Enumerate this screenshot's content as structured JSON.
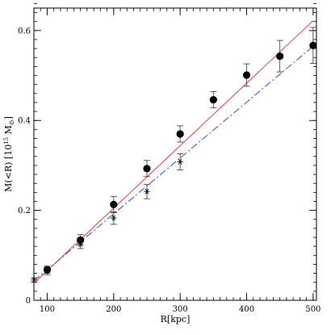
{
  "chart_data": {
    "type": "scatter",
    "xlabel": "R[kpc]",
    "ylabel_main": "M(<R) [10",
    "ylabel_exp": "15",
    "ylabel_unit": " M",
    "ylabel_sub": "⊙",
    "ylabel_close": "]",
    "xlim": [
      80,
      505
    ],
    "ylim": [
      0,
      0.65
    ],
    "x_ticks": [
      100,
      200,
      300,
      400,
      500
    ],
    "y_ticks": [
      0,
      0.2,
      0.4,
      0.6
    ],
    "x_tick_labels": [
      "100",
      "200",
      "300",
      "400",
      "500"
    ],
    "y_tick_labels": [
      "0",
      "0.2",
      "0.4",
      "0.6"
    ],
    "x_minor_step": 10,
    "y_minor_step": 0.02,
    "series": [
      {
        "marker": "filled-circle",
        "color": "#000000",
        "x": [
          100,
          150,
          200,
          250,
          300,
          350,
          400,
          450,
          500
        ],
        "y": [
          0.068,
          0.134,
          0.213,
          0.293,
          0.37,
          0.446,
          0.501,
          0.543,
          0.567
        ],
        "err": [
          0.008,
          0.012,
          0.018,
          0.018,
          0.018,
          0.018,
          0.025,
          0.035,
          0.04
        ]
      },
      {
        "marker": "asterisk",
        "color": "#000000",
        "x": [
          80,
          100,
          150,
          200,
          250,
          300
        ],
        "y": [
          0.045,
          0.065,
          0.125,
          0.183,
          0.242,
          0.308
        ],
        "err": [
          0.005,
          0.008,
          0.01,
          0.014,
          0.016,
          0.018
        ]
      }
    ],
    "lines": [
      {
        "style": "solid",
        "color": "#ff3333",
        "x": [
          80,
          500
        ],
        "y": [
          0.038,
          0.622
        ]
      },
      {
        "style": "dash-dot",
        "color": "#4444dd",
        "x": [
          80,
          500
        ],
        "y": [
          0.043,
          0.565
        ]
      }
    ]
  }
}
